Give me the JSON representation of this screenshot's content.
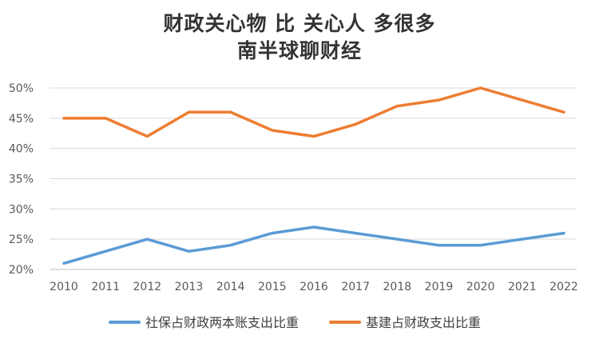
{
  "chart_data": {
    "type": "line",
    "title_lines": [
      "财政关心物 比 关心人 多很多",
      "南半球聊财经"
    ],
    "x": [
      "2010",
      "2011",
      "2012",
      "2013",
      "2014",
      "2015",
      "2016",
      "2017",
      "2018",
      "2019",
      "2020",
      "2021",
      "2022"
    ],
    "y_ticks": [
      "20%",
      "25%",
      "30%",
      "35%",
      "40%",
      "45%",
      "50%"
    ],
    "ylim": [
      20,
      50
    ],
    "y_unit": "%",
    "grid": true,
    "legend_position": "bottom",
    "series": [
      {
        "name": "社保占财政两本账支出比重",
        "color": "#5b9bd5",
        "values": [
          21,
          23,
          25,
          23,
          24,
          26,
          27,
          26,
          25,
          24,
          24,
          25,
          26
        ]
      },
      {
        "name": "基建占财政支出比重",
        "color": "#ed7d31",
        "values": [
          45,
          45,
          42,
          46,
          46,
          43,
          42,
          44,
          47,
          48,
          50,
          48,
          46
        ]
      }
    ]
  }
}
